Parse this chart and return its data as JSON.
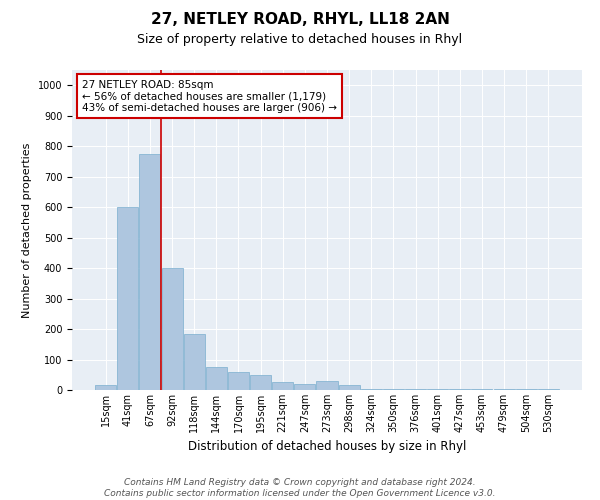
{
  "title": "27, NETLEY ROAD, RHYL, LL18 2AN",
  "subtitle": "Size of property relative to detached houses in Rhyl",
  "xlabel": "Distribution of detached houses by size in Rhyl",
  "ylabel": "Number of detached properties",
  "bin_labels": [
    "15sqm",
    "41sqm",
    "67sqm",
    "92sqm",
    "118sqm",
    "144sqm",
    "170sqm",
    "195sqm",
    "221sqm",
    "247sqm",
    "273sqm",
    "298sqm",
    "324sqm",
    "350sqm",
    "376sqm",
    "401sqm",
    "427sqm",
    "453sqm",
    "479sqm",
    "504sqm",
    "530sqm"
  ],
  "bar_heights": [
    15,
    600,
    775,
    400,
    185,
    75,
    60,
    50,
    25,
    20,
    30,
    15,
    4,
    3,
    2,
    2,
    2,
    2,
    2,
    2,
    2
  ],
  "bar_color": "#aec6df",
  "bar_edge_color": "#7aaecf",
  "red_line_x": 2.5,
  "annotation_text": "27 NETLEY ROAD: 85sqm\n← 56% of detached houses are smaller (1,179)\n43% of semi-detached houses are larger (906) →",
  "annotation_box_color": "#ffffff",
  "annotation_border_color": "#cc0000",
  "ylim": [
    0,
    1050
  ],
  "yticks": [
    0,
    100,
    200,
    300,
    400,
    500,
    600,
    700,
    800,
    900,
    1000
  ],
  "background_color": "#e8eef5",
  "footer_line1": "Contains HM Land Registry data © Crown copyright and database right 2024.",
  "footer_line2": "Contains public sector information licensed under the Open Government Licence v3.0.",
  "title_fontsize": 11,
  "subtitle_fontsize": 9,
  "xlabel_fontsize": 8.5,
  "ylabel_fontsize": 8,
  "tick_fontsize": 7,
  "annotation_fontsize": 7.5,
  "footer_fontsize": 6.5
}
